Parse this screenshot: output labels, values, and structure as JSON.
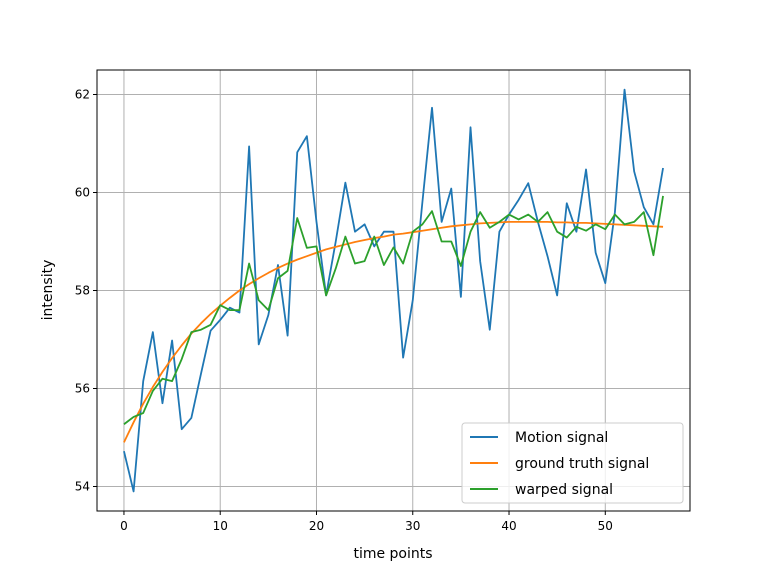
{
  "chart_data": {
    "type": "line",
    "title": "",
    "xlabel": "time points",
    "ylabel": "intensity",
    "xlim": [
      -2.8,
      58.8
    ],
    "ylim": [
      53.5,
      62.5
    ],
    "xticks": [
      0,
      10,
      20,
      30,
      40,
      50
    ],
    "yticks": [
      54,
      56,
      58,
      60,
      62
    ],
    "grid": true,
    "legend_position": "lower-right",
    "x": [
      0,
      1,
      2,
      3,
      4,
      5,
      6,
      7,
      8,
      9,
      10,
      11,
      12,
      13,
      14,
      15,
      16,
      17,
      18,
      19,
      20,
      21,
      22,
      23,
      24,
      25,
      26,
      27,
      28,
      29,
      30,
      31,
      32,
      33,
      34,
      35,
      36,
      37,
      38,
      39,
      40,
      41,
      42,
      43,
      44,
      45,
      46,
      47,
      48,
      49,
      50,
      51,
      52,
      53,
      54,
      55,
      56
    ],
    "series": [
      {
        "name": "Motion signal",
        "color": "#1f77b4",
        "values": [
          54.72,
          53.9,
          56.15,
          57.15,
          55.7,
          56.98,
          55.17,
          55.4,
          56.3,
          57.18,
          57.4,
          57.65,
          57.55,
          60.94,
          56.9,
          57.5,
          58.52,
          57.08,
          60.82,
          61.15,
          59.4,
          57.9,
          59.0,
          60.2,
          59.2,
          59.35,
          58.9,
          59.2,
          59.2,
          56.63,
          57.8,
          59.8,
          61.73,
          59.4,
          60.08,
          57.87,
          61.33,
          58.6,
          57.2,
          59.2,
          59.55,
          59.85,
          60.19,
          59.4,
          58.7,
          57.9,
          59.78,
          59.2,
          60.47,
          58.77,
          58.15,
          59.6,
          62.1,
          60.43,
          59.7,
          59.35,
          60.5
        ]
      },
      {
        "name": "ground truth signal",
        "color": "#ff7f0e",
        "values": [
          54.9,
          55.31,
          55.69,
          56.03,
          56.34,
          56.62,
          56.88,
          57.12,
          57.33,
          57.52,
          57.69,
          57.85,
          58.0,
          58.13,
          58.25,
          58.36,
          58.46,
          58.55,
          58.63,
          58.7,
          58.77,
          58.84,
          58.89,
          58.94,
          58.99,
          59.03,
          59.07,
          59.1,
          59.14,
          59.16,
          59.19,
          59.22,
          59.25,
          59.28,
          59.31,
          59.33,
          59.35,
          59.37,
          59.38,
          59.39,
          59.4,
          59.4,
          59.4,
          59.4,
          59.4,
          59.39,
          59.39,
          59.38,
          59.38,
          59.37,
          59.36,
          59.35,
          59.34,
          59.33,
          59.32,
          59.31,
          59.3
        ]
      },
      {
        "name": "warped signal",
        "color": "#2ca02c",
        "values": [
          55.27,
          55.42,
          55.5,
          55.95,
          56.2,
          56.15,
          56.6,
          57.15,
          57.2,
          57.3,
          57.7,
          57.6,
          57.6,
          58.55,
          57.8,
          57.6,
          58.25,
          58.4,
          59.48,
          58.87,
          58.9,
          57.9,
          58.45,
          59.1,
          58.55,
          58.6,
          59.1,
          58.52,
          58.88,
          58.55,
          59.2,
          59.35,
          59.62,
          59.0,
          59.0,
          58.5,
          59.2,
          59.6,
          59.28,
          59.4,
          59.55,
          59.45,
          59.55,
          59.4,
          59.6,
          59.2,
          59.08,
          59.3,
          59.22,
          59.35,
          59.25,
          59.55,
          59.35,
          59.4,
          59.6,
          58.72,
          59.93
        ]
      }
    ]
  }
}
